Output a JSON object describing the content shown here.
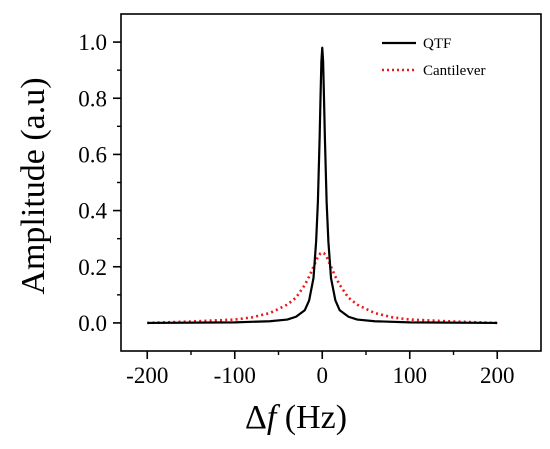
{
  "chart_data": {
    "type": "line",
    "title": "",
    "xlabel_symbol": "Δ",
    "xlabel_var": "f",
    "xlabel_unit": " (Hz)",
    "ylabel": "Amplitude (a.u)",
    "xlim": [
      -230,
      250
    ],
    "ylim": [
      -0.1,
      1.1
    ],
    "x_ticks": [
      -200,
      -100,
      0,
      100,
      200
    ],
    "x_tick_labels": [
      "-200",
      "-100",
      "0",
      "100",
      "200"
    ],
    "y_ticks": [
      0.0,
      0.2,
      0.4,
      0.6,
      0.8,
      1.0
    ],
    "y_tick_labels": [
      "0.0",
      "0.2",
      "0.4",
      "0.6",
      "0.8",
      "1.0"
    ],
    "grid": false,
    "legend_position": "top-right",
    "series": [
      {
        "name": "QTF",
        "color": "#000000",
        "style": "solid",
        "x": [
          -200,
          -100,
          -60,
          -40,
          -30,
          -20,
          -15,
          -10,
          -7,
          -5,
          -3,
          -2,
          -1,
          0,
          1,
          2,
          3,
          5,
          7,
          10,
          15,
          20,
          30,
          40,
          60,
          100,
          200
        ],
        "y": [
          0.0,
          0.002,
          0.006,
          0.012,
          0.022,
          0.045,
          0.08,
          0.16,
          0.29,
          0.43,
          0.66,
          0.8,
          0.93,
          0.98,
          0.93,
          0.8,
          0.66,
          0.43,
          0.29,
          0.16,
          0.08,
          0.045,
          0.022,
          0.012,
          0.006,
          0.002,
          0.0
        ]
      },
      {
        "name": "Cantilever",
        "color": "#e8191b",
        "style": "dotted",
        "x": [
          -200,
          -150,
          -100,
          -80,
          -60,
          -40,
          -30,
          -20,
          -15,
          -10,
          -5,
          -2,
          0,
          2,
          5,
          10,
          15,
          20,
          30,
          40,
          60,
          80,
          100,
          150,
          200
        ],
        "y": [
          0.0,
          0.005,
          0.012,
          0.02,
          0.035,
          0.065,
          0.09,
          0.135,
          0.165,
          0.2,
          0.235,
          0.248,
          0.25,
          0.248,
          0.235,
          0.2,
          0.165,
          0.135,
          0.09,
          0.065,
          0.035,
          0.02,
          0.012,
          0.005,
          0.0
        ]
      }
    ]
  }
}
